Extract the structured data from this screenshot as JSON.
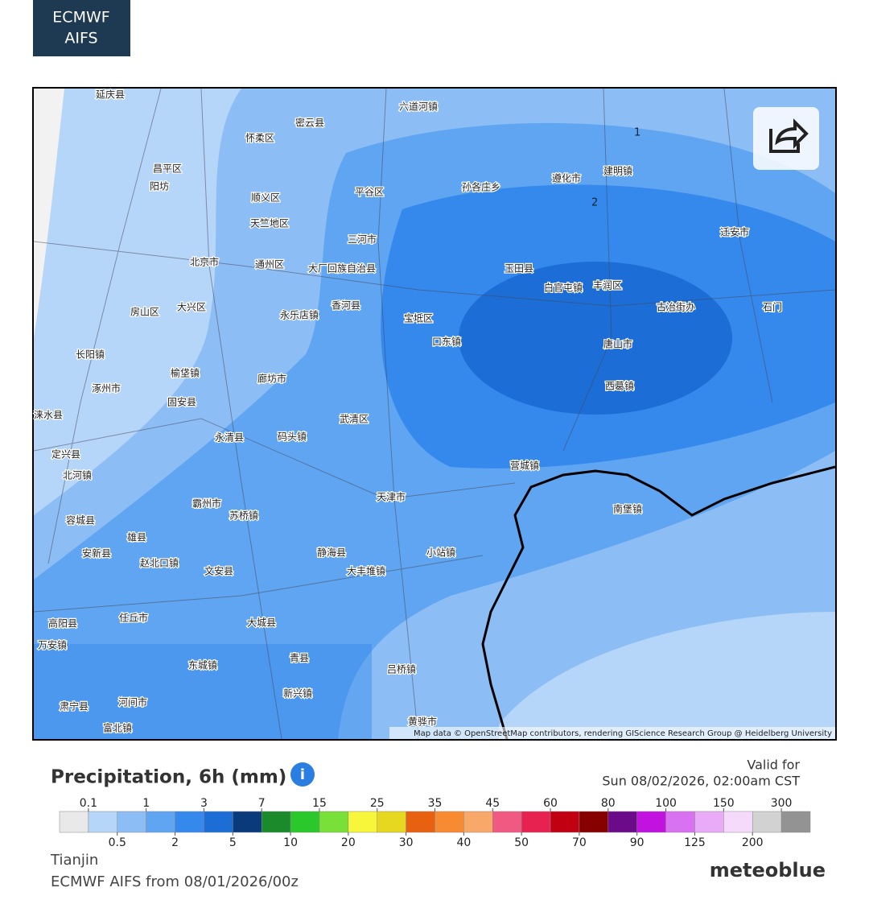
{
  "badge": [
    "ECMWF",
    "AIFS"
  ],
  "map": {
    "labels": [
      "延庆县",
      "怀柔区",
      "密云县",
      "六道河镇",
      "昌平区",
      "阳坊",
      "顺义区",
      "平谷区",
      "孙各庄乡",
      "遵化市",
      "建明镇",
      "天竺地区",
      "三河市",
      "北京市",
      "通州区",
      "大厂回族自治县",
      "玉田县",
      "丰润区",
      "迁安市",
      "白官屯镇",
      "古冶街办",
      "石门",
      "房山区",
      "大兴区",
      "永乐店镇",
      "香河县",
      "宝坻区",
      "口东镇",
      "唐山市",
      "长阳镇",
      "涿州市",
      "榆垡镇",
      "固安县",
      "廊坊市",
      "西葛镇",
      "武清区",
      "永清县",
      "码头镇",
      "定兴县",
      "北河镇",
      "营城镇",
      "天津市",
      "霸州市",
      "苏桥镇",
      "南堡镇",
      "容城县",
      "雄县",
      "安新县",
      "赵北口镇",
      "静海县",
      "小站镇",
      "大丰堆镇",
      "文安县",
      "高阳县",
      "任丘市",
      "大城县",
      "万安镇",
      "东城镇",
      "青县",
      "吕桥镇",
      "新兴镇",
      "肃宁县",
      "河间市",
      "黄骅市",
      "富北镇",
      "涞水县"
    ],
    "contours": [
      "1",
      "2"
    ],
    "attribution": "Map data © OpenStreetMap contributors, rendering GIScience Research Group @ Heidelberg University"
  },
  "legend": {
    "title": "Precipitation, 6h (mm)",
    "valid_label": "Valid for",
    "valid_time": "Sun 08/02/2026, 02:00am CST",
    "boundaries": [
      0.1,
      0.5,
      1,
      2,
      3,
      5,
      7,
      10,
      15,
      20,
      25,
      30,
      35,
      40,
      45,
      50,
      60,
      70,
      80,
      90,
      100,
      125,
      150,
      200,
      300
    ],
    "colors": [
      "#e9e9e9",
      "#b5d5f9",
      "#8dbdf5",
      "#5fa5f1",
      "#3589ed",
      "#1c6ed6",
      "#0b3a7c",
      "#1b8a2b",
      "#2bc82b",
      "#79e039",
      "#f7f63a",
      "#e6d81f",
      "#e86110",
      "#f88a31",
      "#f8a96a",
      "#f05a82",
      "#e72150",
      "#c10012",
      "#870000",
      "#6b0b8a",
      "#c112e0",
      "#d972f0",
      "#e9aaf8",
      "#f5dafc",
      "#d2d2d2",
      "#939393"
    ]
  },
  "footer": {
    "location": "Tianjin",
    "model_run": "ECMWF AIFS from 08/01/2026/00z",
    "logo": "meteoblue"
  }
}
